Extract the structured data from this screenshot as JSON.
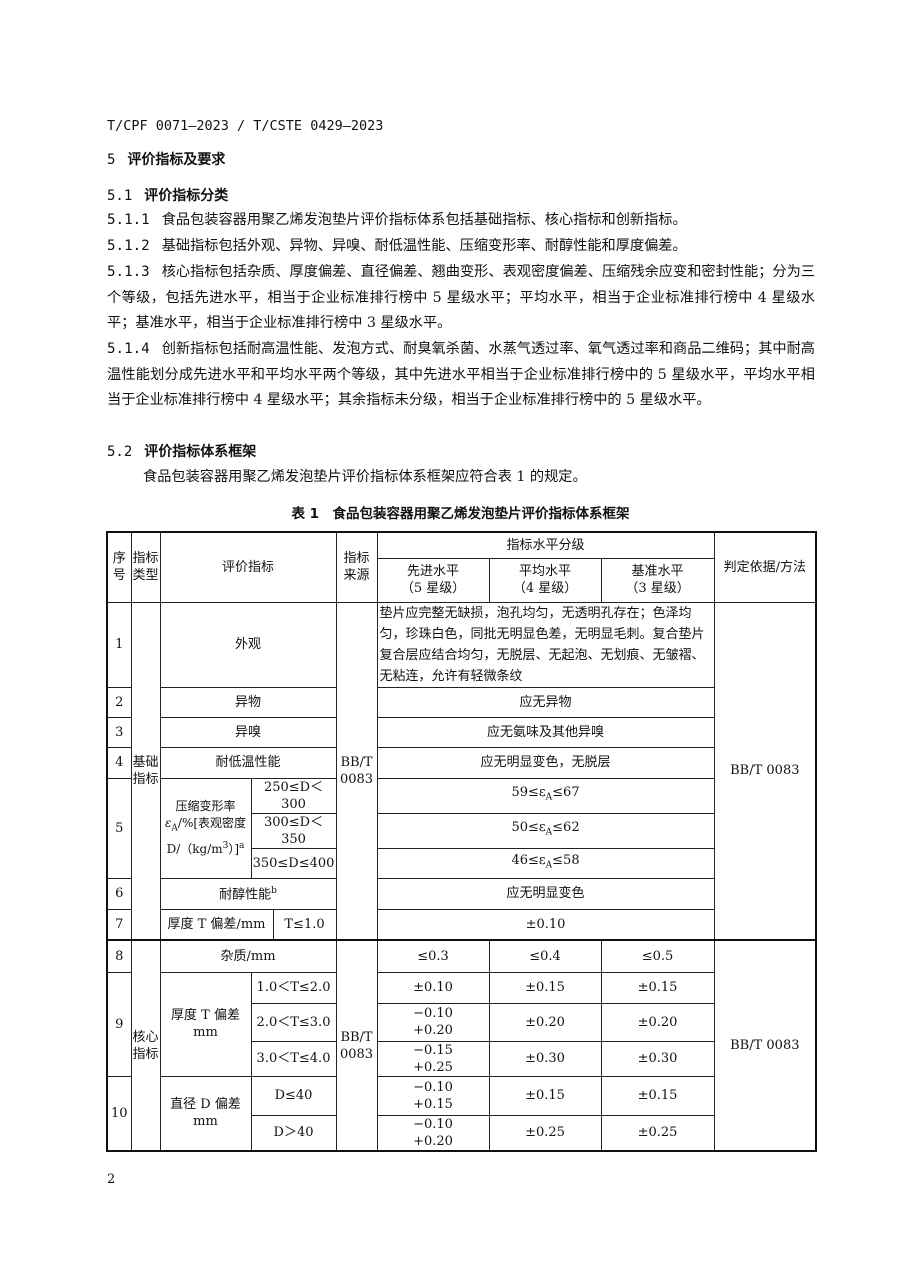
{
  "header": "T/CPF 0071—2023 / T/CSTE 0429—2023",
  "sections": {
    "s5": {
      "num": "5",
      "title": "评价指标及要求"
    },
    "s51": {
      "num": "5.1",
      "title": "评价指标分类"
    },
    "s511": {
      "num": "5.1.1",
      "text": "食品包装容器用聚乙烯发泡垫片评价指标体系包括基础指标、核心指标和创新指标。"
    },
    "s512": {
      "num": "5.1.2",
      "text": "基础指标包括外观、异物、异嗅、耐低温性能、压缩变形率、耐醇性能和厚度偏差。"
    },
    "s513": {
      "num": "5.1.3",
      "text": "核心指标包括杂质、厚度偏差、直径偏差、翘曲变形、表观密度偏差、压缩残余应变和密封性能；分为三个等级，包括先进水平，相当于企业标准排行榜中 5 星级水平；平均水平，相当于企业标准排行榜中 4 星级水平；基准水平，相当于企业标准排行榜中 3 星级水平。"
    },
    "s514": {
      "num": "5.1.4",
      "text": "创新指标包括耐高温性能、发泡方式、耐臭氧杀菌、水蒸气透过率、氧气透过率和商品二维码；其中耐高温性能划分成先进水平和平均水平两个等级，其中先进水平相当于企业标准排行榜中的 5 星级水平，平均水平相当于企业标准排行榜中 4 星级水平；其余指标未分级，相当于企业标准排行榜中的 5 星级水平。"
    },
    "s52": {
      "num": "5.2",
      "title": "评价指标体系框架"
    },
    "s52p": {
      "text": "食品包装容器用聚乙烯发泡垫片评价指标体系框架应符合表 1 的规定。"
    }
  },
  "table": {
    "caption": "表 1　食品包装容器用聚乙烯发泡垫片评价指标体系框架",
    "head": {
      "seq": "序号",
      "type": "指标类型",
      "indicator": "评价指标",
      "source": "指标来源",
      "levels": "指标水平分级",
      "adv": "先进水平",
      "adv_star": "（5 星级）",
      "avg": "平均水平",
      "avg_star": "（4 星级）",
      "base": "基准水平",
      "base_star": "（3 星级）",
      "method": "判定依据/方法"
    },
    "basic": {
      "type": "基础指标",
      "source": "BB/T 0083",
      "method": "BB/T 0083",
      "r1": {
        "seq": "1",
        "name": "外观",
        "req": "垫片应完整无缺损，泡孔均匀，无透明孔存在；色泽均匀，珍珠白色，同批无明显色差，无明显毛刺。复合垫片复合层应结合均匀，无脱层、无起泡、无划痕、无皱褶、无粘连，允许有轻微条纹"
      },
      "r2": {
        "seq": "2",
        "name": "异物",
        "req": "应无异物"
      },
      "r3": {
        "seq": "3",
        "name": "异嗅",
        "req": "应无氨味及其他异嗅"
      },
      "r4": {
        "seq": "4",
        "name": "耐低温性能",
        "req": "应无明显变色，无脱层"
      },
      "r5": {
        "seq": "5",
        "name1": "压缩变形率",
        "eps": "ε",
        "sub": "A",
        "name2": "/%[表观密度",
        "name3": "D/（kg/m",
        "sup3": "3",
        "name4": "）]",
        "supa": "a",
        "rows": [
          {
            "cond": "250≤D＜300",
            "lo": "59≤ε",
            "sub": "A",
            "hi": "≤67"
          },
          {
            "cond": "300≤D＜350",
            "lo": "50≤ε",
            "sub": "A",
            "hi": "≤62"
          },
          {
            "cond": "350≤D≤400",
            "lo": "46≤ε",
            "sub": "A",
            "hi": "≤58"
          }
        ]
      },
      "r6": {
        "seq": "6",
        "name": "耐醇性能",
        "supb": "b",
        "req": "应无明显变色"
      },
      "r7": {
        "seq": "7",
        "name": "厚度 T 偏差/mm",
        "cond": "T≤1.0",
        "req": "±0.10"
      }
    },
    "core": {
      "type": "核心指标",
      "source": "BB/T 0083",
      "method": "BB/T 0083",
      "r8": {
        "seq": "8",
        "name": "杂质/mm",
        "adv": "≤0.3",
        "avg": "≤0.4",
        "base": "≤0.5"
      },
      "r9": {
        "seq": "9",
        "name1": "厚度 T 偏差",
        "name2": "mm",
        "rows": [
          {
            "cond": "1.0＜T≤2.0",
            "adv1": "±0.10",
            "adv2": "",
            "avg": "±0.15",
            "base": "±0.15"
          },
          {
            "cond": "2.0＜T≤3.0",
            "adv1": "−0.10",
            "adv2": "+0.20",
            "avg": "±0.20",
            "base": "±0.20"
          },
          {
            "cond": "3.0＜T≤4.0",
            "adv1": "−0.15",
            "adv2": "+0.25",
            "avg": "±0.30",
            "base": "±0.30"
          }
        ]
      },
      "r10": {
        "seq": "10",
        "name1": "直径 D 偏差",
        "name2": "mm",
        "rows": [
          {
            "cond": "D≤40",
            "adv1": "−0.10",
            "adv2": "+0.15",
            "avg": "±0.15",
            "base": "±0.15"
          },
          {
            "cond": "D＞40",
            "adv1": "−0.10",
            "adv2": "+0.20",
            "avg": "±0.25",
            "base": "±0.25"
          }
        ]
      }
    }
  },
  "page_number": "2"
}
